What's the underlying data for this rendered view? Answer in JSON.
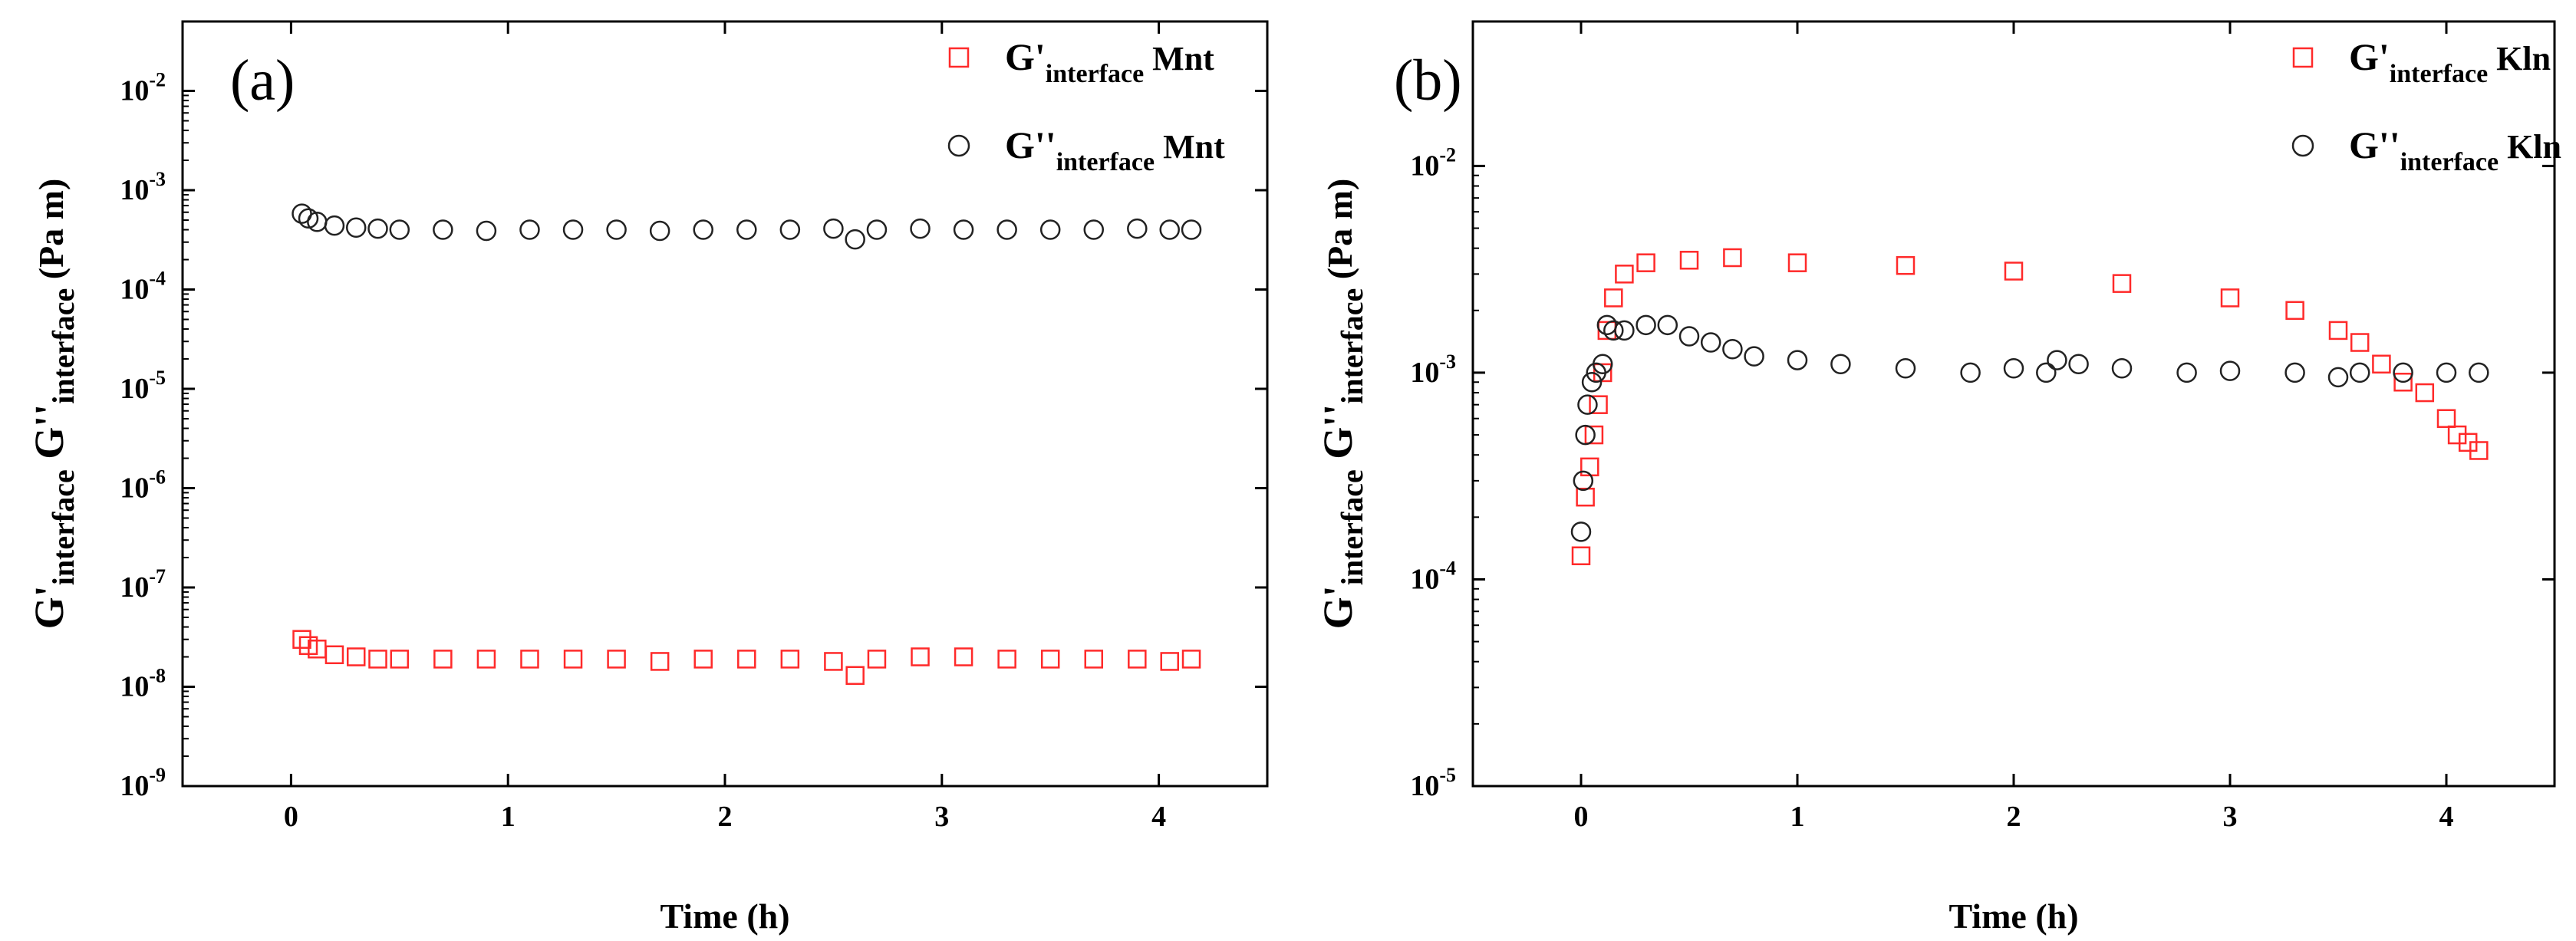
{
  "colors": {
    "red": "#ff2a2a",
    "black": "#222222",
    "axis": "#000000"
  },
  "chart_data": [
    {
      "type": "scatter",
      "panel_label": "(a)",
      "xlabel": "Time (h)",
      "ylabel": {
        "g1": "G'",
        "sub1": "interface",
        "g2": " G''",
        "sub2": "interface",
        "unit": " (Pa m)"
      },
      "xlim": [
        -0.5,
        4.5
      ],
      "x_ticks": [
        0,
        1,
        2,
        3,
        4
      ],
      "x_tick_labels": [
        "0",
        "1",
        "2",
        "3",
        "4"
      ],
      "y_scale": "log",
      "ylim": [
        1e-09,
        0.05
      ],
      "y_ticks": [
        -9,
        -8,
        -7,
        -6,
        -5,
        -4,
        -3,
        -2
      ],
      "y_tick_labels": [
        {
          "base": "10",
          "exp": "-9"
        },
        {
          "base": "10",
          "exp": "-8"
        },
        {
          "base": "10",
          "exp": "-7"
        },
        {
          "base": "10",
          "exp": "-6"
        },
        {
          "base": "10",
          "exp": "-5"
        },
        {
          "base": "10",
          "exp": "-4"
        },
        {
          "base": "10",
          "exp": "-3"
        },
        {
          "base": "10",
          "exp": "-2"
        }
      ],
      "legend_position": "top-right",
      "series": [
        {
          "name": "G'interface Mnt",
          "legend": {
            "g": "G'",
            "sub": "interface",
            "mat": " Mnt"
          },
          "marker": "square",
          "color": "red",
          "x": [
            0.05,
            0.08,
            0.12,
            0.2,
            0.3,
            0.4,
            0.5,
            0.7,
            0.9,
            1.1,
            1.3,
            1.5,
            1.7,
            1.9,
            2.1,
            2.3,
            2.5,
            2.6,
            2.7,
            2.9,
            3.1,
            3.3,
            3.5,
            3.7,
            3.9,
            4.05,
            4.15
          ],
          "y": [
            3e-08,
            2.6e-08,
            2.4e-08,
            2.1e-08,
            2e-08,
            1.9e-08,
            1.9e-08,
            1.9e-08,
            1.9e-08,
            1.9e-08,
            1.9e-08,
            1.9e-08,
            1.8e-08,
            1.9e-08,
            1.9e-08,
            1.9e-08,
            1.8e-08,
            1.3e-08,
            1.9e-08,
            2e-08,
            2e-08,
            1.9e-08,
            1.9e-08,
            1.9e-08,
            1.9e-08,
            1.8e-08,
            1.9e-08
          ]
        },
        {
          "name": "G''interface Mnt",
          "legend": {
            "g": "G''",
            "sub": "interface",
            "mat": " Mnt"
          },
          "marker": "circle",
          "color": "black",
          "x": [
            0.05,
            0.08,
            0.12,
            0.2,
            0.3,
            0.4,
            0.5,
            0.7,
            0.9,
            1.1,
            1.3,
            1.5,
            1.7,
            1.9,
            2.1,
            2.3,
            2.5,
            2.6,
            2.7,
            2.9,
            3.1,
            3.3,
            3.5,
            3.7,
            3.9,
            4.05,
            4.15
          ],
          "y": [
            0.00058,
            0.00052,
            0.00048,
            0.00044,
            0.00042,
            0.00041,
            0.0004,
            0.0004,
            0.00039,
            0.0004,
            0.0004,
            0.0004,
            0.00039,
            0.0004,
            0.0004,
            0.0004,
            0.00041,
            0.00032,
            0.0004,
            0.00041,
            0.0004,
            0.0004,
            0.0004,
            0.0004,
            0.00041,
            0.0004,
            0.0004
          ]
        }
      ]
    },
    {
      "type": "scatter",
      "panel_label": "(b)",
      "xlabel": "Time (h)",
      "ylabel": {
        "g1": "G'",
        "sub1": "interface",
        "g2": " G''",
        "sub2": "interface",
        "unit": " (Pa m)"
      },
      "xlim": [
        -0.5,
        4.5
      ],
      "x_ticks": [
        0,
        1,
        2,
        3,
        4
      ],
      "x_tick_labels": [
        "0",
        "1",
        "2",
        "3",
        "4"
      ],
      "y_scale": "log",
      "ylim": [
        1e-05,
        0.05
      ],
      "y_ticks": [
        -5,
        -4,
        -3,
        -2
      ],
      "y_tick_labels": [
        {
          "base": "10",
          "exp": "-5"
        },
        {
          "base": "10",
          "exp": "-4"
        },
        {
          "base": "10",
          "exp": "-3"
        },
        {
          "base": "10",
          "exp": "-2"
        }
      ],
      "legend_position": "top-right",
      "series": [
        {
          "name": "G'interface Kln",
          "legend": {
            "g": "G'",
            "sub": "interface",
            "mat": " Kln"
          },
          "marker": "square",
          "color": "red",
          "x": [
            0.0,
            0.02,
            0.04,
            0.06,
            0.08,
            0.1,
            0.12,
            0.15,
            0.2,
            0.3,
            0.5,
            0.7,
            1.0,
            1.5,
            2.0,
            2.5,
            3.0,
            3.3,
            3.5,
            3.6,
            3.7,
            3.8,
            3.9,
            4.0,
            4.05,
            4.1,
            4.15
          ],
          "y": [
            0.00013,
            0.00025,
            0.00035,
            0.0005,
            0.0007,
            0.001,
            0.0016,
            0.0023,
            0.003,
            0.0034,
            0.0035,
            0.0036,
            0.0034,
            0.0033,
            0.0031,
            0.0027,
            0.0023,
            0.002,
            0.0016,
            0.0014,
            0.0011,
            0.0009,
            0.0008,
            0.0006,
            0.0005,
            0.00046,
            0.00042
          ]
        },
        {
          "name": "G''interface Kln",
          "legend": {
            "g": "G''",
            "sub": "interface",
            "mat": " Kln"
          },
          "marker": "circle",
          "color": "black",
          "x": [
            0.0,
            0.01,
            0.02,
            0.03,
            0.05,
            0.07,
            0.1,
            0.12,
            0.15,
            0.2,
            0.3,
            0.4,
            0.5,
            0.6,
            0.7,
            0.8,
            1.0,
            1.2,
            1.5,
            1.8,
            2.0,
            2.15,
            2.2,
            2.3,
            2.5,
            2.8,
            3.0,
            3.3,
            3.5,
            3.6,
            3.8,
            4.0,
            4.15
          ],
          "y": [
            0.00017,
            0.0003,
            0.0005,
            0.0007,
            0.0009,
            0.001,
            0.0011,
            0.0017,
            0.0016,
            0.0016,
            0.0017,
            0.0017,
            0.0015,
            0.0014,
            0.0013,
            0.0012,
            0.00115,
            0.0011,
            0.00105,
            0.001,
            0.00105,
            0.001,
            0.00115,
            0.0011,
            0.00105,
            0.001,
            0.00102,
            0.001,
            0.00095,
            0.001,
            0.001,
            0.001,
            0.001
          ]
        }
      ]
    }
  ]
}
